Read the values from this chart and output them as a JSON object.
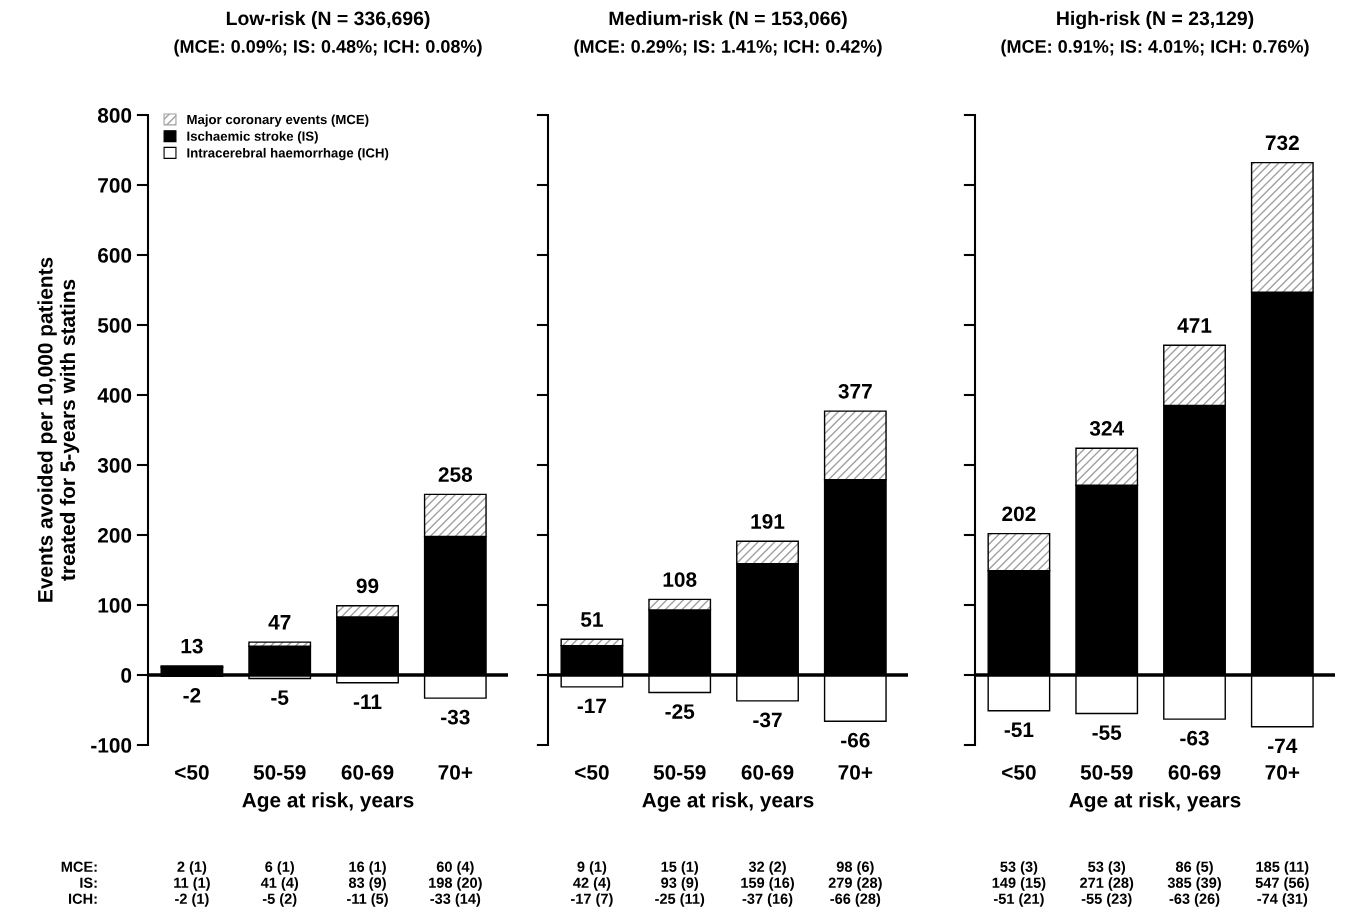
{
  "chart_data": [
    {
      "type": "bar",
      "stacked": true,
      "title": "Low-risk (N = 336,696)",
      "subtitle": "(MCE: 0.09%; IS: 0.48%; ICH: 0.08%)",
      "xlabel": "Age at risk, years",
      "ylabel": "Events avoided per 10,000 patients\ntreated for 5-years with statins",
      "categories": [
        "<50",
        "50-59",
        "60-69",
        "70+"
      ],
      "ylim": [
        -100,
        800
      ],
      "yticks": [
        -100,
        0,
        100,
        200,
        300,
        400,
        500,
        600,
        700,
        800
      ],
      "grid": false,
      "legend": "top left",
      "series": [
        {
          "name": "Major coronary events (MCE)",
          "color": "#a0a0a0",
          "values": [
            2,
            6,
            16,
            60
          ],
          "value_labels": [
            "2 (1)",
            "6 (1)",
            "16 (1)",
            "60 (4)"
          ]
        },
        {
          "name": "Ischaemic stroke (IS)",
          "color": "#000000",
          "values": [
            11,
            41,
            83,
            198
          ],
          "value_labels": [
            "11 (1)",
            "41 (4)",
            "83 (9)",
            "198 (20)"
          ]
        },
        {
          "name": "Intracerebral haemorrhage (ICH)",
          "color": "#ffffff",
          "values": [
            -2,
            -5,
            -11,
            -33
          ],
          "value_labels": [
            "-2 (1)",
            "-5 (2)",
            "-11 (5)",
            "-33 (14)"
          ]
        }
      ],
      "ref_lines": [
        {
          "axis": "y",
          "value": 0,
          "color": "#000000"
        }
      ],
      "annotations": [
        {
          "text": "13",
          "x": "<50",
          "y": 13
        },
        {
          "text": "47",
          "x": "50-59",
          "y": 47
        },
        {
          "text": "99",
          "x": "60-69",
          "y": 99
        },
        {
          "text": "258",
          "x": "70+",
          "y": 258
        },
        {
          "text": "-2",
          "x": "<50",
          "y": -2
        },
        {
          "text": "-5",
          "x": "50-59",
          "y": -5
        },
        {
          "text": "-11",
          "x": "60-69",
          "y": -11
        },
        {
          "text": "-33",
          "x": "70+",
          "y": -33
        },
        "MCE:",
        "IS:",
        "ICH:"
      ]
    },
    {
      "type": "bar",
      "stacked": true,
      "title": "Medium-risk (N = 153,066)",
      "subtitle": "(MCE: 0.29%; IS: 1.41%; ICH: 0.42%)",
      "xlabel": "Age at risk, years",
      "categories": [
        "<50",
        "50-59",
        "60-69",
        "70+"
      ],
      "ylim": [
        -100,
        800
      ],
      "yticks": [
        -100,
        0,
        100,
        200,
        300,
        400,
        500,
        600,
        700,
        800
      ],
      "tick_labels": "x",
      "grid": false,
      "series": [
        {
          "color": "#a0a0a0",
          "values": [
            9,
            15,
            32,
            98
          ],
          "value_labels": [
            "9 (1)",
            "15 (1)",
            "32 (2)",
            "98 (6)"
          ]
        },
        {
          "color": "#000000",
          "values": [
            42,
            93,
            159,
            279
          ],
          "value_labels": [
            "42 (4)",
            "93 (9)",
            "159 (16)",
            "279 (28)"
          ]
        },
        {
          "color": "#ffffff",
          "values": [
            -17,
            -25,
            -37,
            -66
          ],
          "value_labels": [
            "-17 (7)",
            "-25 (11)",
            "-37 (16)",
            "-66 (28)"
          ]
        }
      ],
      "ref_lines": [
        {
          "axis": "y",
          "value": 0,
          "color": "#000000"
        }
      ],
      "annotations": [
        {
          "text": "51",
          "x": "<50",
          "y": 51
        },
        {
          "text": "108",
          "x": "50-59",
          "y": 108
        },
        {
          "text": "191",
          "x": "60-69",
          "y": 191
        },
        {
          "text": "377",
          "x": "70+",
          "y": 377
        },
        {
          "text": "-17",
          "x": "<50",
          "y": -17
        },
        {
          "text": "-25",
          "x": "50-59",
          "y": -25
        },
        {
          "text": "-37",
          "x": "60-69",
          "y": -37
        },
        {
          "text": "-66",
          "x": "70+",
          "y": -66
        }
      ]
    },
    {
      "type": "bar",
      "stacked": true,
      "title": "High-risk (N = 23,129)",
      "subtitle": "(MCE: 0.91%; IS: 4.01%; ICH: 0.76%)",
      "xlabel": "Age at risk, years",
      "categories": [
        "<50",
        "50-59",
        "60-69",
        "70+"
      ],
      "ylim": [
        -100,
        800
      ],
      "yticks": [
        -100,
        0,
        100,
        200,
        300,
        400,
        500,
        600,
        700,
        800
      ],
      "tick_labels": "x",
      "grid": false,
      "series": [
        {
          "color": "#a0a0a0",
          "values": [
            53,
            53,
            86,
            185
          ],
          "value_labels": [
            "53 (3)",
            "53 (3)",
            "86 (5)",
            "185 (11)"
          ]
        },
        {
          "color": "#000000",
          "values": [
            149,
            271,
            385,
            547
          ],
          "value_labels": [
            "149 (15)",
            "271 (28)",
            "385 (39)",
            "547 (56)"
          ]
        },
        {
          "color": "#ffffff",
          "values": [
            -51,
            -55,
            -63,
            -74
          ],
          "value_labels": [
            "-51 (21)",
            "-55 (23)",
            "-63 (26)",
            "-74 (31)"
          ]
        }
      ],
      "ref_lines": [
        {
          "axis": "y",
          "value": 0,
          "color": "#000000"
        }
      ],
      "annotations": [
        {
          "text": "202",
          "x": "<50",
          "y": 202
        },
        {
          "text": "324",
          "x": "50-59",
          "y": 324
        },
        {
          "text": "471",
          "x": "60-69",
          "y": 471
        },
        {
          "text": "732",
          "x": "70+",
          "y": 732
        },
        {
          "text": "-51",
          "x": "<50",
          "y": -51
        },
        {
          "text": "-55",
          "x": "50-59",
          "y": -55
        },
        {
          "text": "-63",
          "x": "60-69",
          "y": -63
        },
        {
          "text": "-74",
          "x": "70+",
          "y": -74
        }
      ]
    }
  ]
}
